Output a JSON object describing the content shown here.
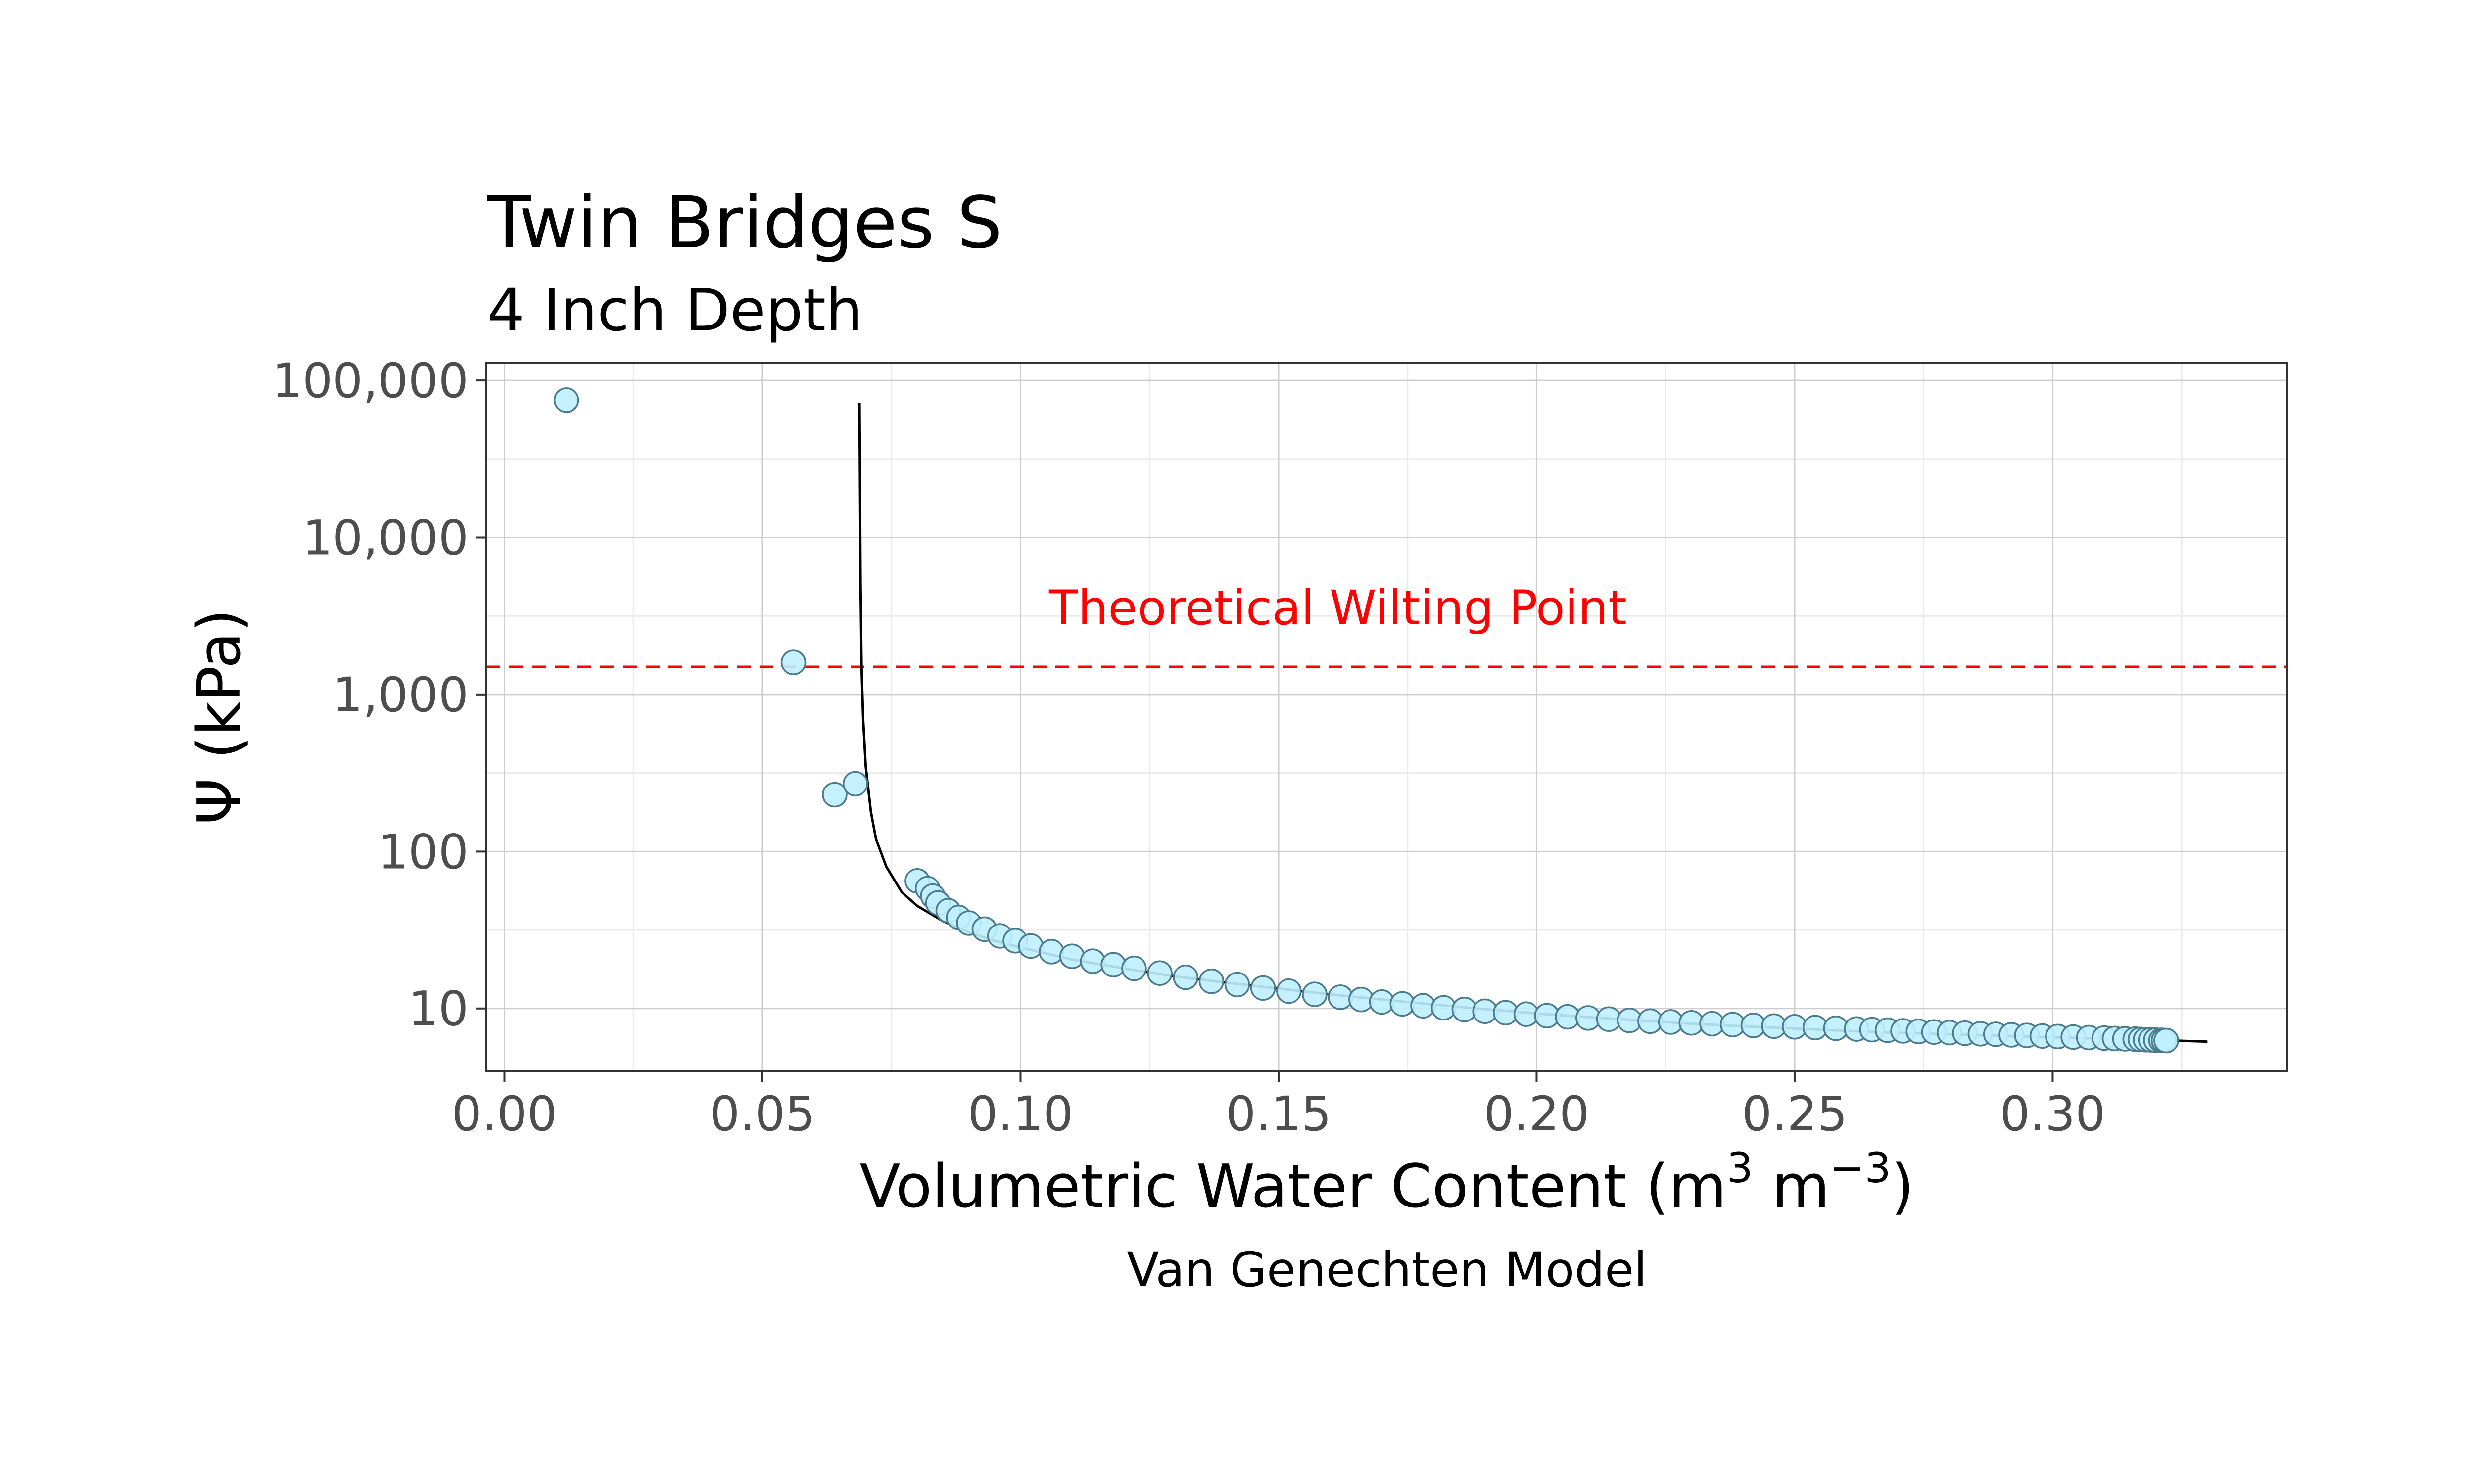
{
  "chart_data": {
    "type": "scatter",
    "title": "Twin Bridges S",
    "subtitle": "4 Inch Depth",
    "xlabel": "Volumetric Water Content (m",
    "xlabel_sup1": "3",
    "xlabel_mid": " m",
    "xlabel_sup2": "−3",
    "xlabel_end": ")",
    "ylabel": "Ψ (kPa)",
    "caption": "Van Genechten Model",
    "y_scale": "log10",
    "xlim": [
      -0.0035,
      0.3455
    ],
    "ylim": [
      4,
      130000
    ],
    "x_ticks": [
      0.0,
      0.05,
      0.1,
      0.15,
      0.2,
      0.25,
      0.3
    ],
    "x_tick_labels": [
      "0.00",
      "0.05",
      "0.10",
      "0.15",
      "0.20",
      "0.25",
      "0.30"
    ],
    "y_ticks": [
      10,
      100,
      1000,
      10000,
      100000
    ],
    "y_tick_labels": [
      "10",
      "100",
      "1,000",
      "10,000",
      "100,000"
    ],
    "grid": true,
    "colors": {
      "point_fill": "#bfefff",
      "point_stroke": "#4a7a8c",
      "curve": "#000000",
      "reference_line": "#ff0000",
      "grid_major": "#cccccc",
      "grid_minor": "#ebebeb"
    },
    "reference_line": {
      "y": 1500,
      "label": "Theoretical Wilting Point",
      "style": "dashed",
      "label_x": 0.1615,
      "label_y": 2800
    },
    "series": [
      {
        "kind": "points",
        "points": [
          [
            0.012,
            75000
          ],
          [
            0.056,
            1600
          ],
          [
            0.064,
            230
          ],
          [
            0.068,
            270
          ],
          [
            0.08,
            65
          ],
          [
            0.082,
            58
          ],
          [
            0.083,
            52
          ],
          [
            0.084,
            47
          ],
          [
            0.086,
            42
          ],
          [
            0.088,
            38
          ],
          [
            0.09,
            35
          ],
          [
            0.093,
            32
          ],
          [
            0.096,
            29
          ],
          [
            0.099,
            27
          ],
          [
            0.102,
            25
          ],
          [
            0.106,
            23
          ],
          [
            0.11,
            21.5
          ],
          [
            0.114,
            20
          ],
          [
            0.118,
            19
          ],
          [
            0.122,
            18
          ],
          [
            0.127,
            16.8
          ],
          [
            0.132,
            15.8
          ],
          [
            0.137,
            14.9
          ],
          [
            0.142,
            14.2
          ],
          [
            0.147,
            13.5
          ],
          [
            0.152,
            12.9
          ],
          [
            0.157,
            12.3
          ],
          [
            0.162,
            11.8
          ],
          [
            0.166,
            11.4
          ],
          [
            0.17,
            11.0
          ],
          [
            0.174,
            10.7
          ],
          [
            0.178,
            10.4
          ],
          [
            0.182,
            10.1
          ],
          [
            0.186,
            9.85
          ],
          [
            0.19,
            9.6
          ],
          [
            0.194,
            9.4
          ],
          [
            0.198,
            9.2
          ],
          [
            0.202,
            9.0
          ],
          [
            0.206,
            8.85
          ],
          [
            0.21,
            8.7
          ],
          [
            0.214,
            8.55
          ],
          [
            0.218,
            8.4
          ],
          [
            0.222,
            8.3
          ],
          [
            0.226,
            8.2
          ],
          [
            0.23,
            8.1
          ],
          [
            0.234,
            8.0
          ],
          [
            0.238,
            7.9
          ],
          [
            0.242,
            7.8
          ],
          [
            0.246,
            7.72
          ],
          [
            0.25,
            7.64
          ],
          [
            0.254,
            7.56
          ],
          [
            0.258,
            7.48
          ],
          [
            0.262,
            7.4
          ],
          [
            0.265,
            7.33
          ],
          [
            0.268,
            7.27
          ],
          [
            0.271,
            7.2
          ],
          [
            0.274,
            7.14
          ],
          [
            0.277,
            7.08
          ],
          [
            0.28,
            7.02
          ],
          [
            0.283,
            6.96
          ],
          [
            0.286,
            6.9
          ],
          [
            0.289,
            6.85
          ],
          [
            0.292,
            6.79
          ],
          [
            0.295,
            6.74
          ],
          [
            0.298,
            6.68
          ],
          [
            0.301,
            6.63
          ],
          [
            0.304,
            6.58
          ],
          [
            0.307,
            6.53
          ],
          [
            0.31,
            6.48
          ],
          [
            0.312,
            6.44
          ],
          [
            0.314,
            6.41
          ],
          [
            0.316,
            6.38
          ],
          [
            0.317,
            6.35
          ],
          [
            0.318,
            6.33
          ],
          [
            0.319,
            6.31
          ],
          [
            0.32,
            6.29
          ],
          [
            0.321,
            6.27
          ],
          [
            0.3215,
            6.26
          ],
          [
            0.322,
            6.25
          ]
        ]
      },
      {
        "kind": "curve",
        "model": "van_genuchten",
        "points": [
          [
            0.0688,
            72000
          ],
          [
            0.0689,
            20000
          ],
          [
            0.069,
            5000
          ],
          [
            0.0692,
            1500
          ],
          [
            0.0695,
            700
          ],
          [
            0.07,
            350
          ],
          [
            0.071,
            180
          ],
          [
            0.072,
            120
          ],
          [
            0.074,
            80
          ],
          [
            0.077,
            55
          ],
          [
            0.08,
            45
          ],
          [
            0.085,
            36
          ],
          [
            0.09,
            30.5
          ],
          [
            0.095,
            27
          ],
          [
            0.1,
            24.5
          ],
          [
            0.11,
            20.5
          ],
          [
            0.12,
            18
          ],
          [
            0.13,
            16
          ],
          [
            0.14,
            14.6
          ],
          [
            0.15,
            13.4
          ],
          [
            0.16,
            12.3
          ],
          [
            0.17,
            11.4
          ],
          [
            0.18,
            10.6
          ],
          [
            0.19,
            9.9
          ],
          [
            0.2,
            9.3
          ],
          [
            0.21,
            8.8
          ],
          [
            0.22,
            8.4
          ],
          [
            0.23,
            8.0
          ],
          [
            0.24,
            7.7
          ],
          [
            0.25,
            7.45
          ],
          [
            0.26,
            7.2
          ],
          [
            0.27,
            7.0
          ],
          [
            0.28,
            6.85
          ],
          [
            0.29,
            6.7
          ],
          [
            0.3,
            6.55
          ],
          [
            0.31,
            6.42
          ],
          [
            0.32,
            6.3
          ],
          [
            0.33,
            6.15
          ]
        ]
      }
    ]
  }
}
